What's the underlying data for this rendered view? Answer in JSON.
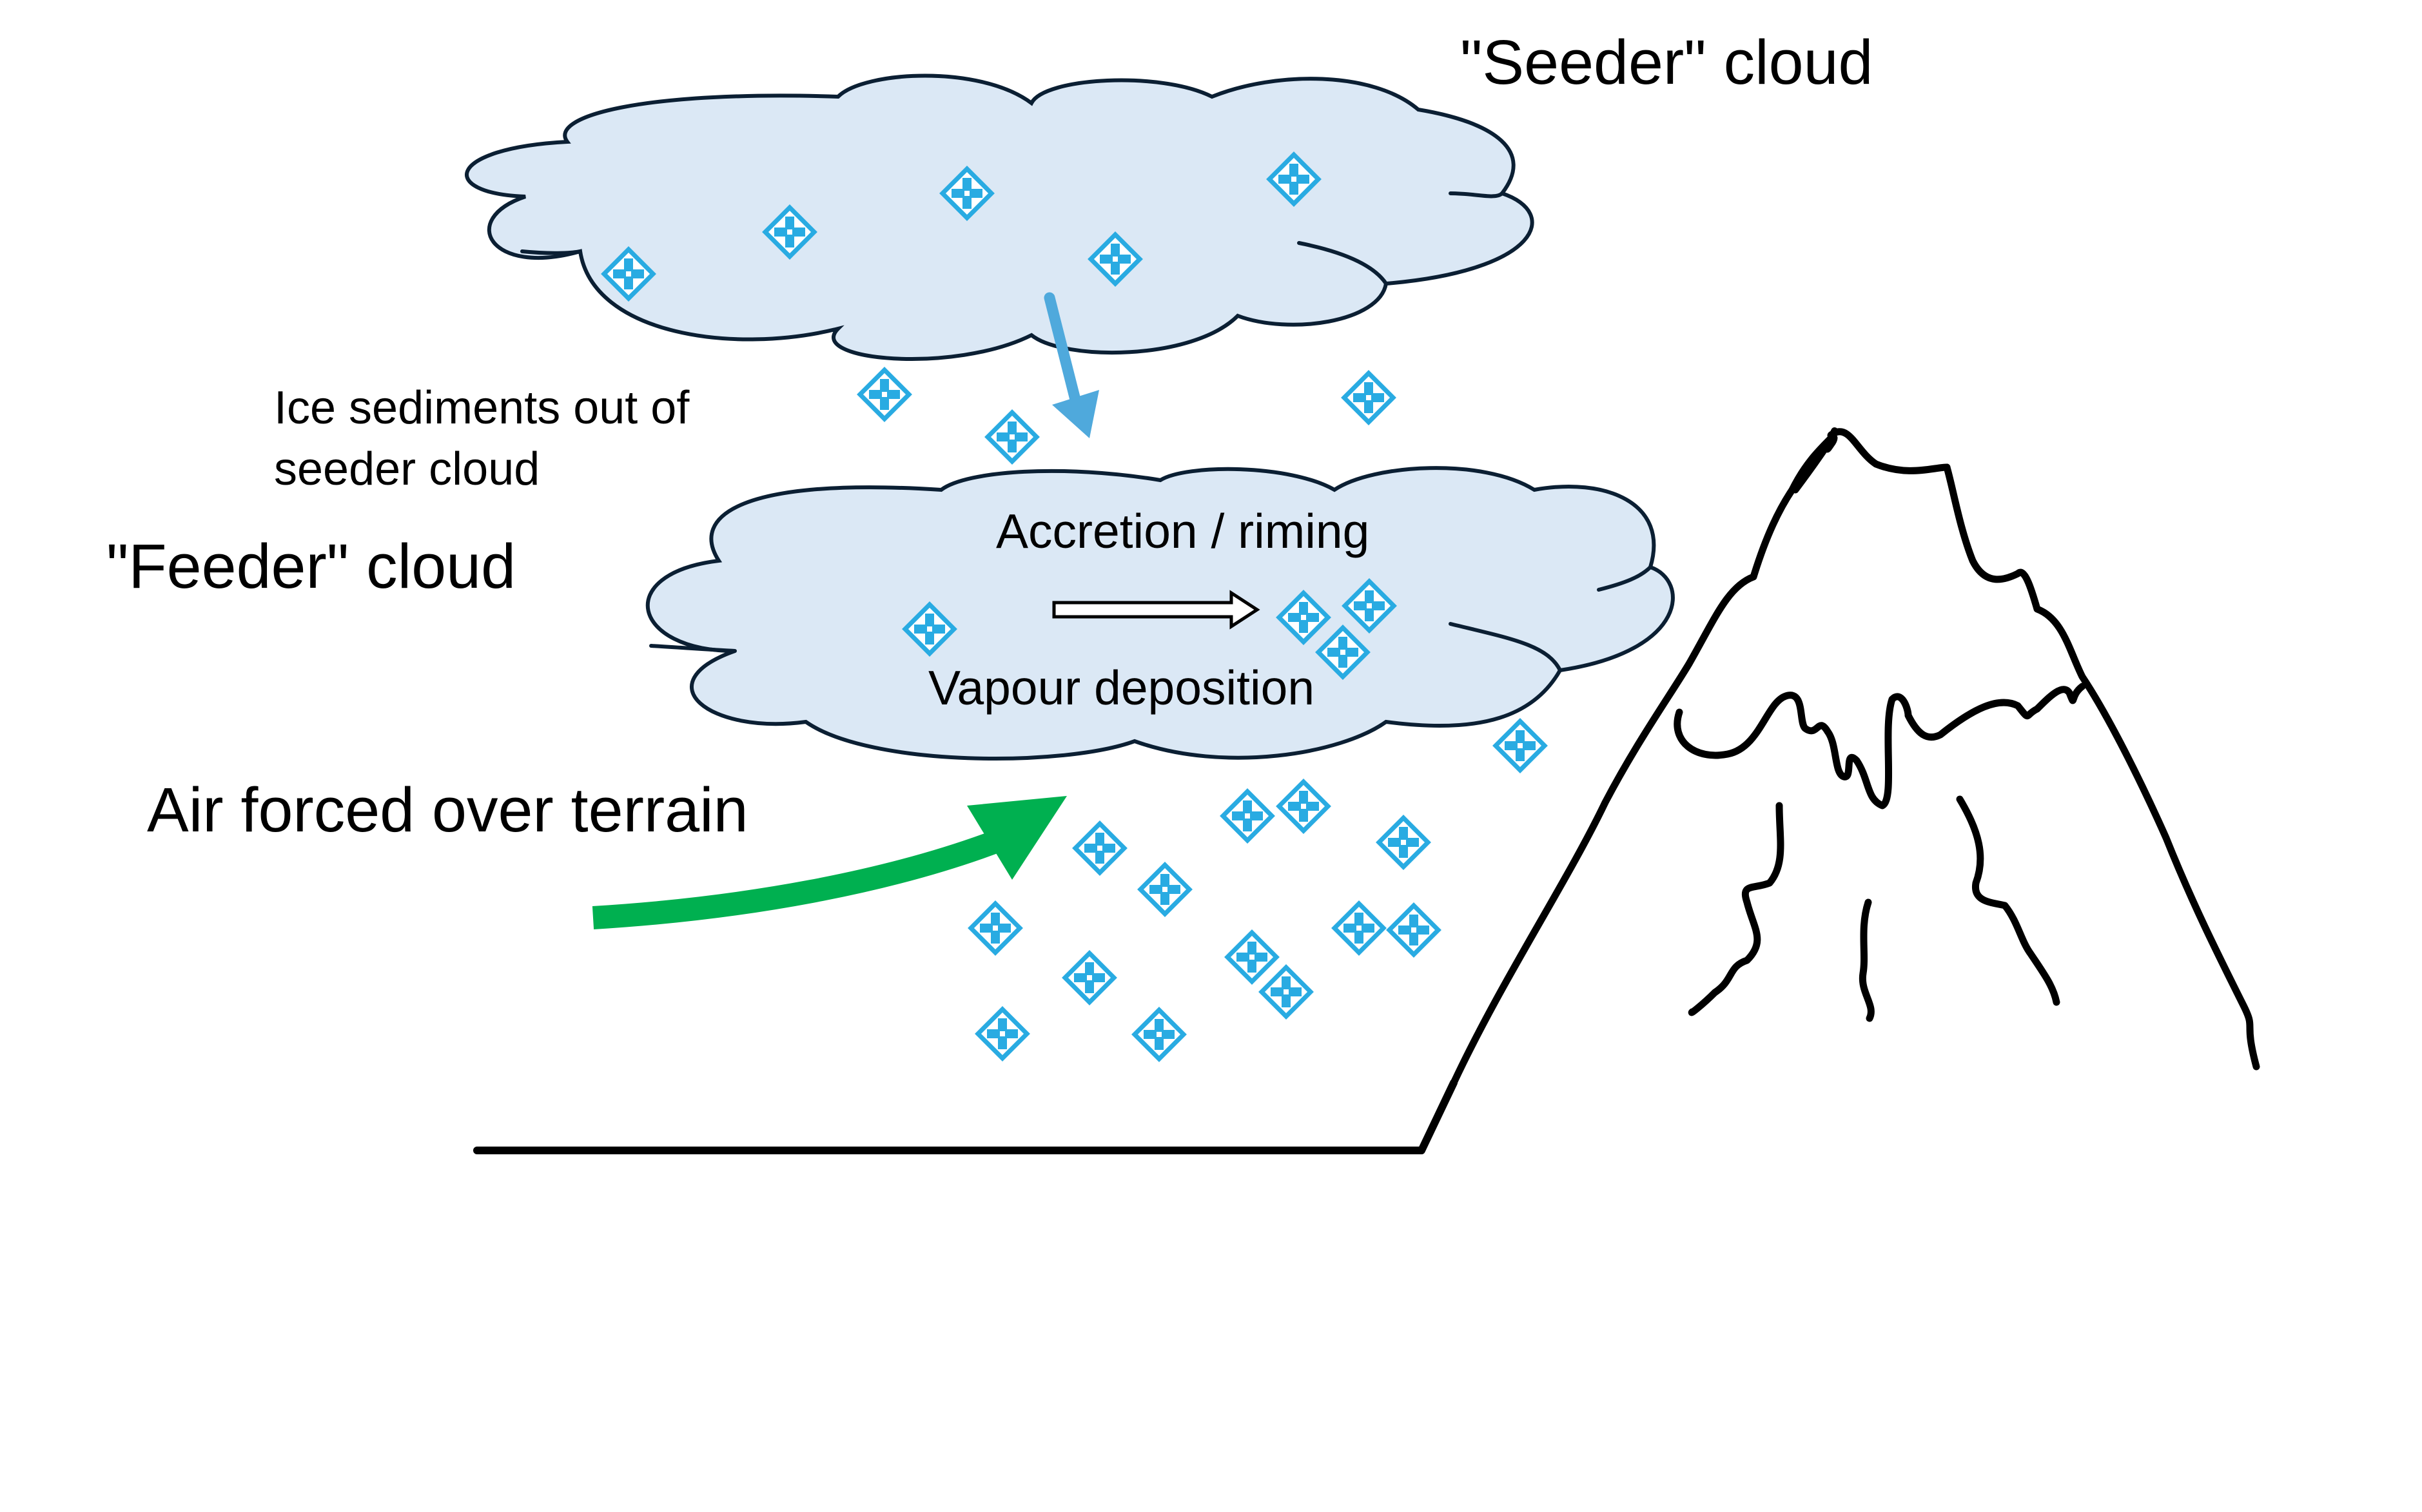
{
  "labels": {
    "seeder_cloud": "\"Seeder\" cloud",
    "feeder_cloud": "\"Feeder\" cloud",
    "ice_sediments_line1": "Ice sediments out of",
    "ice_sediments_line2": "seeder cloud",
    "accretion": "Accretion / riming",
    "vapour_deposition": "Vapour deposition",
    "air_forced": "Air forced over terrain"
  },
  "colors": {
    "cloud_fill": "#dbe8f5",
    "cloud_stroke": "#0b1f33",
    "ice_crystal": "#29abe2",
    "sediment_arrow": "#4fa9dc",
    "airflow_arrow": "#00b050",
    "ground_and_mountain": "#000000"
  },
  "icons": {
    "ice_crystal": "ice-crystal-icon"
  }
}
